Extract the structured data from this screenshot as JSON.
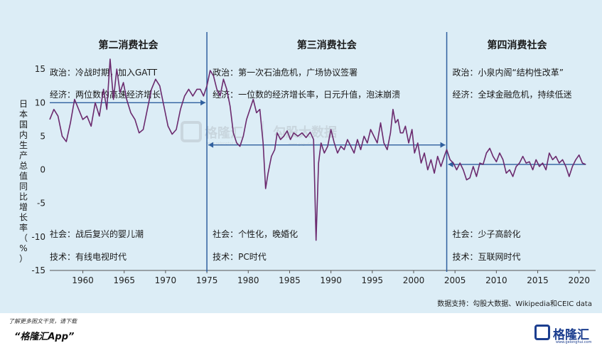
{
  "chart_data": {
    "type": "line",
    "ylabel": "日本国内生产总值同比增长率（%）",
    "ylim": [
      -15,
      20
    ],
    "yticks": [
      -15,
      -10,
      -5,
      0,
      5,
      10,
      15
    ],
    "xlim": [
      1956,
      2022
    ],
    "xticks": [
      1960,
      1965,
      1970,
      1975,
      1980,
      1985,
      1990,
      1995,
      2000,
      2005,
      2010,
      2015,
      2020
    ],
    "eras": [
      {
        "title": "第二消费社会",
        "politics": "政治：冷战时期，加入GATT",
        "economy": "经济：两位数的高速经济增长",
        "society": "社会：战后复兴的婴儿潮",
        "technology": "技术：有线电视时代",
        "avg_growth": 10,
        "start": 1956,
        "end": 1975
      },
      {
        "title": "第三消费社会",
        "politics": "政治：第一次石油危机，广场协议签署",
        "economy": "经济：一位数的经济增长率，日元升值，泡沫崩溃",
        "society": "社会：个性化，晚婚化",
        "technology": "技术：PC时代",
        "avg_growth": 3.7,
        "start": 1975,
        "end": 2004
      },
      {
        "title": "第四消费社会",
        "politics": "政治：小泉内阁“结构性改革”",
        "economy": "经济：全球金融危机，持续低迷",
        "society": "社会：少子高龄化",
        "technology": "技术：互联网时代",
        "avg_growth": 0.8,
        "start": 2004,
        "end": 2021
      }
    ],
    "dividers": [
      1975,
      2004
    ],
    "series": [
      {
        "color": "#6b2a6e",
        "points": [
          [
            1956.0,
            7.5
          ],
          [
            1956.5,
            9.0
          ],
          [
            1957.0,
            8.0
          ],
          [
            1957.5,
            5.0
          ],
          [
            1958.0,
            4.2
          ],
          [
            1958.5,
            7.0
          ],
          [
            1959.0,
            10.5
          ],
          [
            1959.5,
            9.0
          ],
          [
            1960.0,
            7.5
          ],
          [
            1960.5,
            8.0
          ],
          [
            1961.0,
            6.5
          ],
          [
            1961.5,
            10.0
          ],
          [
            1962.0,
            8.0
          ],
          [
            1962.5,
            12.0
          ],
          [
            1962.9,
            9.0
          ],
          [
            1963.3,
            16.5
          ],
          [
            1963.7,
            10.5
          ],
          [
            1964.1,
            15.0
          ],
          [
            1964.5,
            11.5
          ],
          [
            1964.9,
            13.0
          ],
          [
            1965.3,
            10.5
          ],
          [
            1965.8,
            8.5
          ],
          [
            1966.3,
            7.5
          ],
          [
            1966.8,
            5.5
          ],
          [
            1967.3,
            6.0
          ],
          [
            1967.8,
            9.0
          ],
          [
            1968.3,
            12.0
          ],
          [
            1968.8,
            13.5
          ],
          [
            1969.3,
            12.5
          ],
          [
            1969.8,
            9.5
          ],
          [
            1970.3,
            6.5
          ],
          [
            1970.8,
            5.3
          ],
          [
            1971.3,
            6.0
          ],
          [
            1971.8,
            9.0
          ],
          [
            1972.3,
            11.0
          ],
          [
            1972.8,
            12.0
          ],
          [
            1973.3,
            11.0
          ],
          [
            1973.8,
            12.0
          ],
          [
            1974.2,
            12.0
          ],
          [
            1974.6,
            11.0
          ],
          [
            1975.0,
            12.5
          ],
          [
            1975.4,
            14.8
          ],
          [
            1975.8,
            14.0
          ],
          [
            1976.2,
            12.0
          ],
          [
            1976.6,
            11.0
          ],
          [
            1977.0,
            13.5
          ],
          [
            1977.4,
            12.0
          ],
          [
            1977.8,
            9.5
          ],
          [
            1978.2,
            5.5
          ],
          [
            1978.6,
            4.0
          ],
          [
            1979.0,
            3.5
          ],
          [
            1979.4,
            5.0
          ],
          [
            1979.8,
            7.5
          ],
          [
            1980.2,
            9.0
          ],
          [
            1980.6,
            10.5
          ],
          [
            1981.0,
            8.5
          ],
          [
            1981.4,
            9.0
          ],
          [
            1981.8,
            4.0
          ],
          [
            1982.1,
            -2.8
          ],
          [
            1982.4,
            -0.5
          ],
          [
            1982.8,
            2.0
          ],
          [
            1983.2,
            3.0
          ],
          [
            1983.5,
            5.5
          ],
          [
            1983.9,
            4.5
          ],
          [
            1984.3,
            5.0
          ],
          [
            1984.7,
            5.8
          ],
          [
            1985.1,
            4.5
          ],
          [
            1985.5,
            5.5
          ],
          [
            1986.0,
            5.0
          ],
          [
            1986.5,
            5.5
          ],
          [
            1987.0,
            4.8
          ],
          [
            1987.5,
            5.6
          ],
          [
            1987.9,
            4.5
          ],
          [
            1988.2,
            -10.5
          ],
          [
            1988.5,
            1.0
          ],
          [
            1988.8,
            4.0
          ],
          [
            1989.2,
            2.5
          ],
          [
            1989.6,
            3.5
          ],
          [
            1990.0,
            6.0
          ],
          [
            1990.4,
            4.0
          ],
          [
            1990.8,
            2.5
          ],
          [
            1991.2,
            3.5
          ],
          [
            1991.6,
            3.0
          ],
          [
            1992.0,
            4.5
          ],
          [
            1992.4,
            3.5
          ],
          [
            1992.8,
            2.5
          ],
          [
            1993.2,
            4.5
          ],
          [
            1993.6,
            3.0
          ],
          [
            1994.0,
            5.0
          ],
          [
            1994.4,
            4.0
          ],
          [
            1994.8,
            6.0
          ],
          [
            1995.2,
            5.0
          ],
          [
            1995.6,
            4.0
          ],
          [
            1996.0,
            7.0
          ],
          [
            1996.4,
            4.0
          ],
          [
            1996.8,
            3.0
          ],
          [
            1997.2,
            5.5
          ],
          [
            1997.5,
            9.0
          ],
          [
            1997.8,
            7.0
          ],
          [
            1998.1,
            7.5
          ],
          [
            1998.4,
            5.5
          ],
          [
            1998.7,
            5.5
          ],
          [
            1999.0,
            6.5
          ],
          [
            1999.4,
            4.0
          ],
          [
            1999.8,
            6.0
          ],
          [
            2000.1,
            2.5
          ],
          [
            2000.5,
            4.0
          ],
          [
            2000.9,
            1.0
          ],
          [
            2001.3,
            2.5
          ],
          [
            2001.7,
            0.0
          ],
          [
            2002.1,
            1.5
          ],
          [
            2002.5,
            -0.5
          ],
          [
            2002.9,
            2.0
          ],
          [
            2003.3,
            0.5
          ],
          [
            2003.7,
            2.0
          ],
          [
            2004.0,
            3.0
          ],
          [
            2004.4,
            1.5
          ],
          [
            2004.8,
            1.0
          ],
          [
            2005.2,
            0.0
          ],
          [
            2005.6,
            1.0
          ],
          [
            2006.0,
            0.0
          ],
          [
            2006.4,
            -1.5
          ],
          [
            2006.8,
            -1.2
          ],
          [
            2007.2,
            0.5
          ],
          [
            2007.6,
            -1.0
          ],
          [
            2008.0,
            1.0
          ],
          [
            2008.4,
            0.8
          ],
          [
            2008.8,
            2.5
          ],
          [
            2009.2,
            3.2
          ],
          [
            2009.6,
            2.0
          ],
          [
            2010.0,
            1.2
          ],
          [
            2010.4,
            2.5
          ],
          [
            2010.8,
            1.5
          ],
          [
            2011.2,
            -0.5
          ],
          [
            2011.6,
            0.0
          ],
          [
            2012.0,
            -1.0
          ],
          [
            2012.4,
            0.5
          ],
          [
            2012.8,
            1.0
          ],
          [
            2013.2,
            2.0
          ],
          [
            2013.6,
            1.0
          ],
          [
            2014.0,
            1.2
          ],
          [
            2014.4,
            0.0
          ],
          [
            2014.8,
            1.5
          ],
          [
            2015.2,
            0.5
          ],
          [
            2015.6,
            1.0
          ],
          [
            2016.0,
            0.0
          ],
          [
            2016.4,
            2.5
          ],
          [
            2016.8,
            1.5
          ],
          [
            2017.2,
            2.0
          ],
          [
            2017.6,
            1.0
          ],
          [
            2018.0,
            1.5
          ],
          [
            2018.4,
            0.5
          ],
          [
            2018.8,
            -1.0
          ],
          [
            2019.2,
            0.5
          ],
          [
            2019.6,
            1.5
          ],
          [
            2020.0,
            2.2
          ],
          [
            2020.4,
            1.0
          ],
          [
            2020.8,
            0.8
          ]
        ]
      }
    ]
  },
  "watermark": {
    "brand": "格隆汇",
    "brand_sub": "www.gelonghui.com",
    "data_brand": "勾股大数据",
    "data_sub": "www.gogudata.com"
  },
  "source": "数据支持：勾股大数据、Wikipedia和CEIC data",
  "footer": {
    "line1": "了解更多图文干货，请下载",
    "line2": "“格隆汇App”",
    "logo_text": "格隆汇",
    "logo_sub": "www.gelonghui.com"
  }
}
